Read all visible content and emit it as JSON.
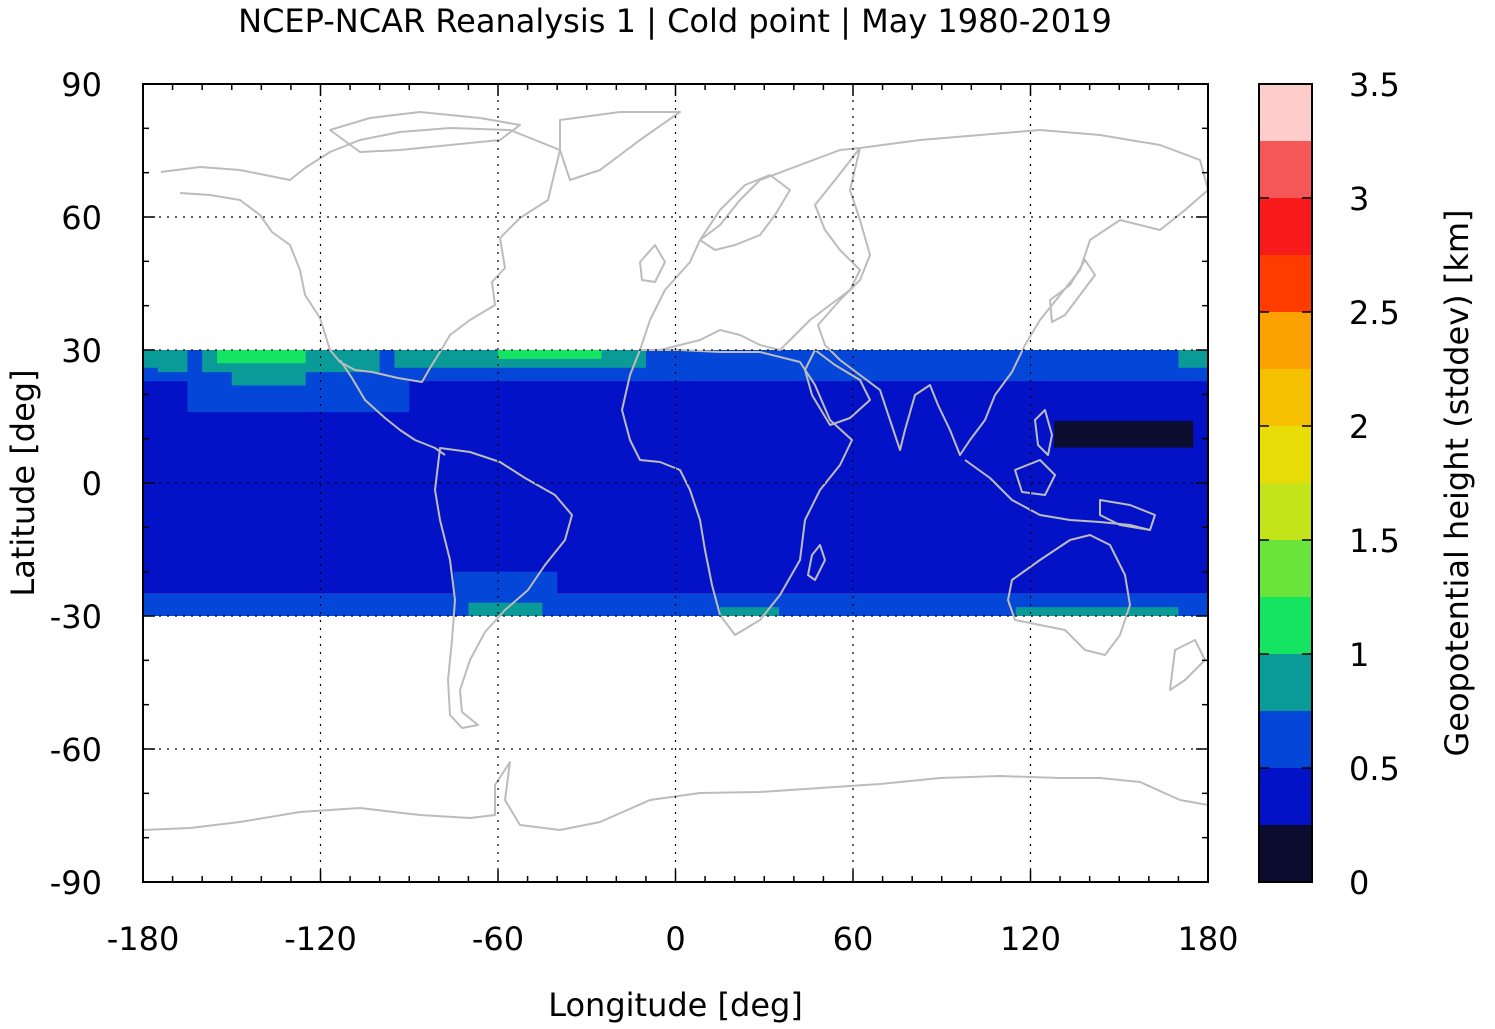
{
  "chart_data": {
    "type": "heatmap",
    "title": "NCEP-NCAR Reanalysis 1 | Cold point | May 1980-2019",
    "xlabel": "Longitude [deg]",
    "ylabel": "Latitude [deg]",
    "xlim": [
      -180,
      180
    ],
    "ylim": [
      -90,
      90
    ],
    "x_ticks": [
      "-180",
      "-120",
      "-60",
      "0",
      "60",
      "120",
      "180"
    ],
    "y_ticks": [
      "90",
      "60",
      "30",
      "0",
      "-30",
      "-60",
      "-90"
    ],
    "grid": true,
    "data_lat_range": [
      -30,
      30
    ],
    "colorbar": {
      "label": "Geopotential height (stddev) [km]",
      "range": [
        0,
        3.5
      ],
      "ticks": [
        "0",
        "0.5",
        "1",
        "1.5",
        "2",
        "2.5",
        "3",
        "3.5"
      ],
      "bins": [
        {
          "from": 0.0,
          "to": 0.25,
          "color": "#0c0c2e"
        },
        {
          "from": 0.25,
          "to": 0.5,
          "color": "#0312c6"
        },
        {
          "from": 0.5,
          "to": 0.75,
          "color": "#0446d8"
        },
        {
          "from": 0.75,
          "to": 1.0,
          "color": "#0a9a98"
        },
        {
          "from": 1.0,
          "to": 1.25,
          "color": "#14e462"
        },
        {
          "from": 1.25,
          "to": 1.5,
          "color": "#6ae43a"
        },
        {
          "from": 1.5,
          "to": 1.75,
          "color": "#c2e418"
        },
        {
          "from": 1.75,
          "to": 2.0,
          "color": "#e8dc06"
        },
        {
          "from": 2.0,
          "to": 2.25,
          "color": "#f4c000"
        },
        {
          "from": 2.25,
          "to": 2.5,
          "color": "#fca200"
        },
        {
          "from": 2.5,
          "to": 2.75,
          "color": "#ff3c00"
        },
        {
          "from": 2.75,
          "to": 3.0,
          "color": "#f91b1b"
        },
        {
          "from": 3.0,
          "to": 3.25,
          "color": "#f55656"
        },
        {
          "from": 3.25,
          "to": 3.5,
          "color": "#ffcccc"
        }
      ]
    },
    "base_value": 0.4,
    "regions": [
      {
        "lon": [
          -180,
          180
        ],
        "lat": [
          -25,
          23
        ],
        "value": 0.4
      },
      {
        "lon": [
          -180,
          180
        ],
        "lat": [
          23,
          30
        ],
        "value": 0.6
      },
      {
        "lon": [
          -180,
          180
        ],
        "lat": [
          -30,
          -25
        ],
        "value": 0.6
      },
      {
        "lon": [
          -165,
          -90
        ],
        "lat": [
          16,
          30
        ],
        "value": 0.6
      },
      {
        "lon": [
          -160,
          -100
        ],
        "lat": [
          25,
          30
        ],
        "value": 0.9
      },
      {
        "lon": [
          -175,
          -165
        ],
        "lat": [
          25,
          30
        ],
        "value": 0.9
      },
      {
        "lon": [
          -150,
          -125
        ],
        "lat": [
          22,
          27
        ],
        "value": 0.9
      },
      {
        "lon": [
          -155,
          -125
        ],
        "lat": [
          27,
          30
        ],
        "value": 1.1
      },
      {
        "lon": [
          -95,
          -10
        ],
        "lat": [
          26,
          30
        ],
        "value": 0.9
      },
      {
        "lon": [
          -60,
          -25
        ],
        "lat": [
          28,
          30
        ],
        "value": 1.1
      },
      {
        "lon": [
          170,
          180
        ],
        "lat": [
          26,
          30
        ],
        "value": 0.9
      },
      {
        "lon": [
          -180,
          -170
        ],
        "lat": [
          26,
          30
        ],
        "value": 0.9
      },
      {
        "lon": [
          -75,
          -40
        ],
        "lat": [
          -30,
          -20
        ],
        "value": 0.6
      },
      {
        "lon": [
          -70,
          -45
        ],
        "lat": [
          -30,
          -27
        ],
        "value": 0.9
      },
      {
        "lon": [
          10,
          40
        ],
        "lat": [
          -30,
          -26
        ],
        "value": 0.6
      },
      {
        "lon": [
          15,
          35
        ],
        "lat": [
          -30,
          -28
        ],
        "value": 0.9
      },
      {
        "lon": [
          115,
          170
        ],
        "lat": [
          -30,
          -28
        ],
        "value": 0.9
      },
      {
        "lon": [
          128,
          175
        ],
        "lat": [
          8,
          14
        ],
        "value": 0.1
      }
    ]
  }
}
